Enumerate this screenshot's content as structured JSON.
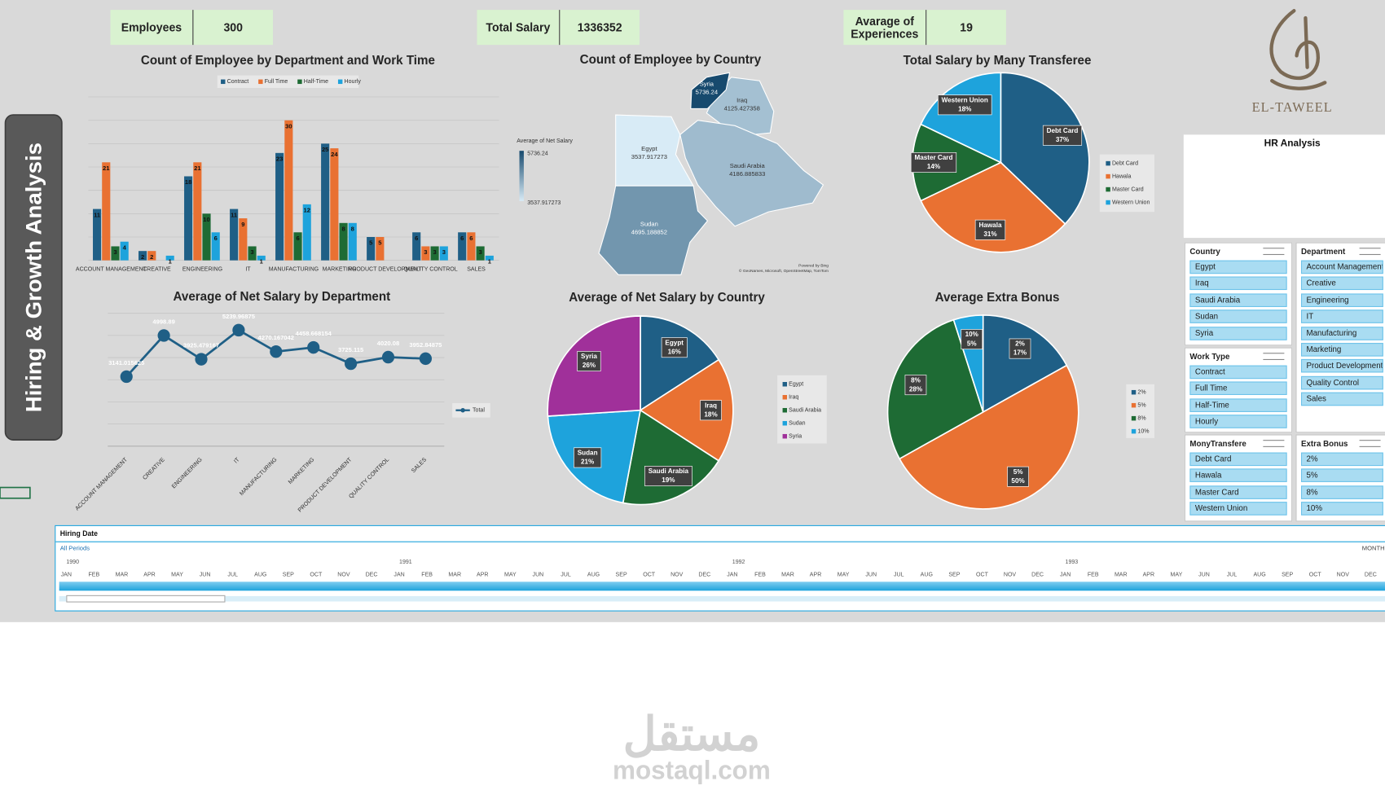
{
  "sidebar_title": "Hiring & Growth Analysis",
  "kpis": [
    {
      "label": "Employees",
      "value": 300
    },
    {
      "label": "Total Salary",
      "value": 1336352
    },
    {
      "label": "Avarage of Experiences",
      "value": 19
    }
  ],
  "logo": {
    "text": "EL-TAWEEL",
    "caption": "HR Analysis"
  },
  "chart_data": [
    {
      "type": "bar",
      "title": "Count of Employee by Department and Work Time",
      "categories": [
        "ACCOUNT MANAGEMENT",
        "CREATIVE",
        "ENGINEERING",
        "IT",
        "MANUFACTURING",
        "MARKETING",
        "PRODUCT DEVELOPMENT",
        "QUALITY CONTROL",
        "SALES"
      ],
      "series": [
        {
          "name": "Contract",
          "color": "#1f5f86",
          "values": [
            11,
            2,
            18,
            11,
            23,
            25,
            5,
            6,
            6
          ]
        },
        {
          "name": "Full Time",
          "color": "#e97132",
          "values": [
            21,
            2,
            21,
            9,
            30,
            24,
            5,
            3,
            6
          ]
        },
        {
          "name": "Half-Time",
          "color": "#1e6b34",
          "values": [
            3,
            null,
            10,
            3,
            6,
            8,
            null,
            3,
            3
          ]
        },
        {
          "name": "Hourly",
          "color": "#1ea3dc",
          "values": [
            4,
            1,
            6,
            1,
            12,
            8,
            null,
            3,
            1
          ]
        }
      ],
      "ylim": [
        0,
        35
      ],
      "yticks": [
        0,
        5,
        10,
        15,
        20,
        25,
        30,
        35
      ],
      "grid": true
    },
    {
      "type": "line",
      "title": "Average of Net Salary by Department",
      "categories": [
        "ACCOUNT MANAGEMENT",
        "CREATIVE",
        "ENGINEERING",
        "IT",
        "MANUFACTURING",
        "MARKETING",
        "PRODUCT DEVELOPMENT",
        "QUALITY CONTROL",
        "SALES"
      ],
      "series": [
        {
          "name": "Total",
          "color": "#1f5f86",
          "values": [
            3141.015625,
            4998.89,
            3925.479167,
            5239.96875,
            4270.167042,
            4458.668154,
            3725.115,
            4020.08,
            3952.84875
          ]
        }
      ],
      "ylim": [
        0,
        6000
      ],
      "yticks": [
        0,
        1000,
        2000,
        3000,
        4000,
        5000,
        6000
      ],
      "grid": true
    },
    {
      "type": "map",
      "title": "Count of Employee by Country",
      "categories": [
        "Egypt",
        "Iraq",
        "Saudi Arabia",
        "Sudan",
        "Syria"
      ],
      "values": [
        3537.917273,
        4125.427358,
        4186.885833,
        4695.188852,
        5736.24
      ],
      "legend_title": "Average of Net Salary",
      "legend_max": 5736.24,
      "legend_min": 3537.917273,
      "color_low": "#d8ebf6",
      "color_high": "#174a6e",
      "powered_by": "Powered by Bing",
      "credits": "© GeoNames, Microsoft, OpenStreetMap, TomTom"
    },
    {
      "type": "pie",
      "title": "Total Salary by Many Transferee",
      "categories": [
        "Debt Card",
        "Hawala",
        "Master Card",
        "Western Union"
      ],
      "values": [
        37,
        31,
        14,
        18
      ],
      "value_labels": [
        "37%",
        "31%",
        "14%",
        "18%"
      ],
      "colors": [
        "#1f5f86",
        "#e97132",
        "#1e6b34",
        "#1ea3dc"
      ]
    },
    {
      "type": "pie",
      "title": "Average of Net Salary by Country",
      "categories": [
        "Egypt",
        "Iraq",
        "Saudi Arabia",
        "Sudan",
        "Syria"
      ],
      "values": [
        16,
        18,
        19,
        21,
        26
      ],
      "value_labels": [
        "16%",
        "18%",
        "19%",
        "21%",
        "26%"
      ],
      "colors": [
        "#1f5f86",
        "#e97132",
        "#1e6b34",
        "#1ea3dc",
        "#a0309a"
      ]
    },
    {
      "type": "pie",
      "title": "Average Extra Bonus",
      "categories": [
        "2%",
        "5%",
        "8%",
        "10%"
      ],
      "values": [
        17,
        50,
        28,
        5
      ],
      "value_labels": [
        "17%",
        "50%",
        "28%",
        "5%"
      ],
      "colors": [
        "#1f5f86",
        "#e97132",
        "#1e6b34",
        "#1ea3dc"
      ]
    }
  ],
  "slicers": [
    {
      "title": "Country",
      "items": [
        "Egypt",
        "Iraq",
        "Saudi Arabia",
        "Sudan",
        "Syria"
      ]
    },
    {
      "title": "Department",
      "items": [
        "Account Management",
        "Creative",
        "Engineering",
        "IT",
        "Manufacturing",
        "Marketing",
        "Product Development",
        "Quality Control",
        "Sales"
      ]
    },
    {
      "title": "Work Type",
      "items": [
        "Contract",
        "Full Time",
        "Half-Time",
        "Hourly"
      ]
    },
    {
      "title": "MonyTransfere",
      "items": [
        "Debt Card",
        "Hawala",
        "Master Card",
        "Western Union"
      ]
    },
    {
      "title": "Extra Bonus",
      "items": [
        "2%",
        "5%",
        "8%",
        "10%"
      ]
    }
  ],
  "timeline": {
    "title": "Hiring Date",
    "period": "All Periods",
    "level": "MONTHS",
    "years": [
      "1990",
      "1991",
      "1992",
      "1993"
    ],
    "months": [
      "JAN",
      "FEB",
      "MAR",
      "APR",
      "MAY",
      "JUN",
      "JUL",
      "AUG",
      "SEP",
      "OCT",
      "NOV",
      "DEC"
    ]
  },
  "watermark": {
    "arabic": "مستقل",
    "latin": "mostaql.com"
  }
}
